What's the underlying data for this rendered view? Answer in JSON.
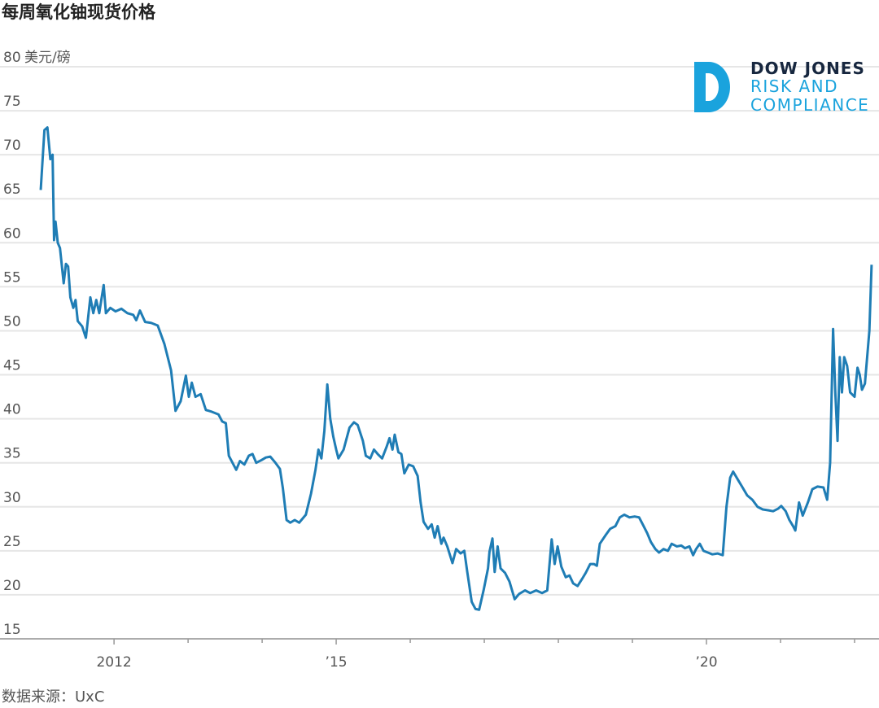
{
  "chart_data": {
    "type": "line",
    "title": "每周氧化铀现货价格",
    "y_unit": "美元/磅",
    "source": "数据来源：UxC",
    "color": "#1f7db5",
    "grid": true,
    "xlim": [
      2010.46,
      2022.33
    ],
    "xticks": [
      {
        "value": 2012,
        "label": "2012"
      },
      {
        "value": 2015,
        "label": "’15"
      },
      {
        "value": 2020,
        "label": "’20"
      }
    ],
    "minor_xticks": [
      2013,
      2014,
      2016,
      2017,
      2018,
      2019,
      2021,
      2022
    ],
    "ylim": [
      15,
      80
    ],
    "yticks": [
      15,
      20,
      25,
      30,
      35,
      40,
      45,
      50,
      55,
      60,
      65,
      70,
      75,
      80
    ],
    "x": [
      2011.01,
      2011.06,
      2011.1,
      2011.14,
      2011.17,
      2011.19,
      2011.21,
      2011.24,
      2011.27,
      2011.32,
      2011.35,
      2011.38,
      2011.41,
      2011.45,
      2011.48,
      2011.51,
      2011.57,
      2011.62,
      2011.68,
      2011.72,
      2011.76,
      2011.8,
      2011.86,
      2011.89,
      2011.95,
      2012.02,
      2012.1,
      2012.18,
      2012.26,
      2012.3,
      2012.35,
      2012.42,
      2012.5,
      2012.59,
      2012.68,
      2012.77,
      2012.83,
      2012.9,
      2012.97,
      2013.01,
      2013.05,
      2013.1,
      2013.17,
      2013.24,
      2013.32,
      2013.41,
      2013.46,
      2013.51,
      2013.55,
      2013.6,
      2013.65,
      2013.7,
      2013.76,
      2013.82,
      2013.87,
      2013.92,
      2013.99,
      2014.05,
      2014.11,
      2014.18,
      2014.24,
      2014.28,
      2014.33,
      2014.38,
      2014.44,
      2014.5,
      2014.59,
      2014.66,
      2014.72,
      2014.76,
      2014.8,
      2014.84,
      2014.88,
      2014.92,
      2014.96,
      2015.0,
      2015.03,
      2015.1,
      2015.18,
      2015.24,
      2015.29,
      2015.36,
      2015.4,
      2015.46,
      2015.51,
      2015.56,
      2015.62,
      2015.68,
      2015.72,
      2015.76,
      2015.79,
      2015.84,
      2015.88,
      2015.92,
      2015.98,
      2016.04,
      2016.1,
      2016.14,
      2016.18,
      2016.24,
      2016.29,
      2016.33,
      2016.37,
      2016.42,
      2016.45,
      2016.5,
      2016.57,
      2016.62,
      2016.68,
      2016.73,
      2016.77,
      2016.83,
      2016.88,
      2016.93,
      2016.99,
      2017.05,
      2017.07,
      2017.11,
      2017.14,
      2017.18,
      2017.22,
      2017.28,
      2017.34,
      2017.41,
      2017.47,
      2017.55,
      2017.62,
      2017.7,
      2017.78,
      2017.85,
      2017.91,
      2017.95,
      2017.99,
      2018.04,
      2018.1,
      2018.15,
      2018.2,
      2018.26,
      2018.32,
      2018.37,
      2018.43,
      2018.48,
      2018.52,
      2018.56,
      2018.64,
      2018.7,
      2018.77,
      2018.83,
      2018.89,
      2018.96,
      2019.03,
      2019.09,
      2019.14,
      2019.2,
      2019.25,
      2019.31,
      2019.36,
      2019.42,
      2019.48,
      2019.53,
      2019.6,
      2019.66,
      2019.71,
      2019.77,
      2019.82,
      2019.86,
      2019.91,
      2019.96,
      2020.02,
      2020.08,
      2020.15,
      2020.22,
      2020.27,
      2020.32,
      2020.36,
      2020.43,
      2020.48,
      2020.55,
      2020.62,
      2020.69,
      2020.76,
      2020.84,
      2020.9,
      2020.97,
      2021.01,
      2021.07,
      2021.12,
      2021.17,
      2021.2,
      2021.25,
      2021.3,
      2021.37,
      2021.43,
      2021.5,
      2021.58,
      2021.63,
      2021.67,
      2021.71,
      2021.74,
      2021.77,
      2021.8,
      2021.83,
      2021.86,
      2021.9,
      2021.94,
      2022.0,
      2022.04,
      2022.07,
      2022.1,
      2022.14,
      2022.2,
      2022.23
    ],
    "values": [
      66,
      72.8,
      73.1,
      69.5,
      70,
      60.3,
      62.4,
      60,
      59.4,
      55.4,
      57.6,
      57.3,
      53.8,
      52.6,
      53.5,
      51.1,
      50.5,
      49.2,
      53.8,
      52,
      53.5,
      52,
      55.2,
      52,
      52.6,
      52.2,
      52.5,
      52,
      51.8,
      51.2,
      52.3,
      51,
      50.9,
      50.6,
      48.5,
      45.5,
      40.9,
      42,
      44.9,
      42.5,
      44.1,
      42.5,
      42.8,
      41,
      40.8,
      40.5,
      39.7,
      39.5,
      35.8,
      35,
      34.2,
      35.2,
      34.8,
      35.8,
      36,
      35,
      35.3,
      35.6,
      35.7,
      35,
      34.3,
      32.1,
      28.5,
      28.2,
      28.5,
      28.2,
      29.1,
      31.5,
      34.2,
      36.5,
      35.5,
      38.6,
      43.9,
      40,
      38,
      36.5,
      35.5,
      36.5,
      39,
      39.6,
      39.3,
      37.5,
      35.8,
      35.5,
      36.5,
      36,
      35.5,
      36.8,
      37.8,
      36.5,
      38.2,
      36.2,
      36,
      33.8,
      34.8,
      34.6,
      33.5,
      30.5,
      28.3,
      27.5,
      28,
      26.5,
      27.8,
      25.8,
      26.5,
      25.5,
      23.6,
      25.2,
      24.7,
      25,
      22.6,
      19.2,
      18.4,
      18.3,
      20.5,
      23,
      24.9,
      26.4,
      22.6,
      25.5,
      23,
      22.5,
      21.5,
      19.5,
      20.1,
      20.5,
      20.2,
      20.5,
      20.2,
      20.5,
      26.3,
      23.5,
      25.5,
      23.2,
      22,
      22.2,
      21.3,
      21,
      21.8,
      22.5,
      23.5,
      23.5,
      23.3,
      25.8,
      26.8,
      27.5,
      27.8,
      28.8,
      29.1,
      28.8,
      28.9,
      28.8,
      28,
      27,
      26,
      25.2,
      24.8,
      25.2,
      25,
      25.8,
      25.5,
      25.6,
      25.3,
      25.5,
      24.5,
      25.2,
      25.8,
      25,
      24.8,
      24.6,
      24.7,
      24.5,
      30,
      33.3,
      34,
      33,
      32.3,
      31.3,
      30.8,
      30,
      29.7,
      29.6,
      29.5,
      29.8,
      30.1,
      29.5,
      28.5,
      27.8,
      27.3,
      30.5,
      29,
      30.5,
      32,
      32.3,
      32.2,
      30.8,
      35,
      50.2,
      43,
      37.5,
      47,
      43,
      47,
      46,
      43,
      42.5,
      45.8,
      45,
      43.3,
      44,
      50,
      57.5
    ]
  },
  "logo": {
    "line1": "DOW JONES",
    "line2": "RISK AND",
    "line3": "COMPLIANCE"
  }
}
